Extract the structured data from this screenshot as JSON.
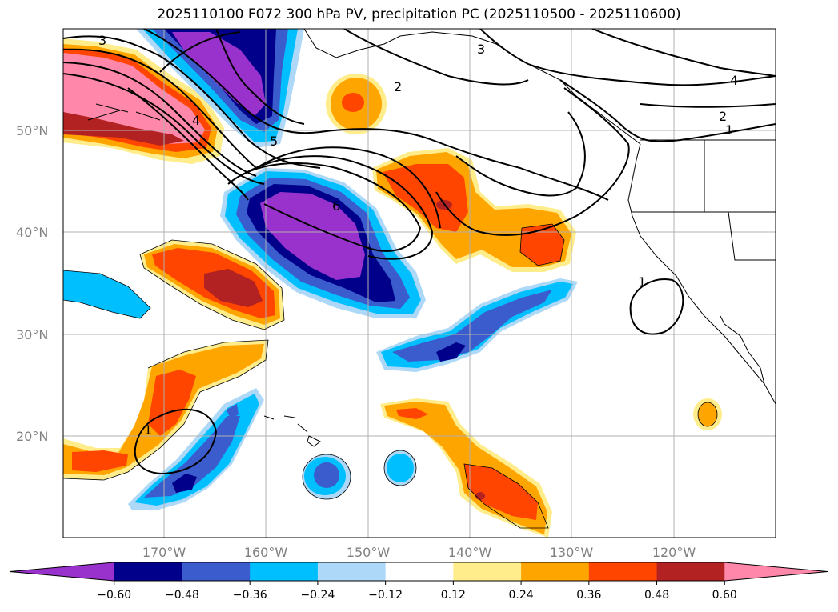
{
  "title": "2025110100 F072 300 hPa PV, precipitation PC (2025110500 - 2025110600)",
  "lat_labels": [
    "50°N",
    "40°N",
    "30°N",
    "20°N"
  ],
  "lon_labels": [
    "170°W",
    "160°W",
    "150°W",
    "140°W",
    "130°W",
    "120°W"
  ],
  "colorbar": {
    "colors": [
      "#9932cc",
      "#00008b",
      "#3a5ccc",
      "#00bfff",
      "#add8f7",
      "#ffffff",
      "#ffec8b",
      "#ffa500",
      "#ff4500",
      "#b22222",
      "#ff88aa"
    ],
    "tick_labels": [
      "−0.60",
      "−0.48",
      "−0.36",
      "−0.24",
      "−0.12",
      "0.12",
      "0.24",
      "0.36",
      "0.48",
      "0.60"
    ]
  },
  "contour_labels": [
    "3",
    "2",
    "3",
    "4",
    "2",
    "1",
    "4",
    "5",
    "6",
    "1",
    "1"
  ],
  "colors": {
    "coast": "#000000",
    "grid": "#b0b0b0"
  }
}
